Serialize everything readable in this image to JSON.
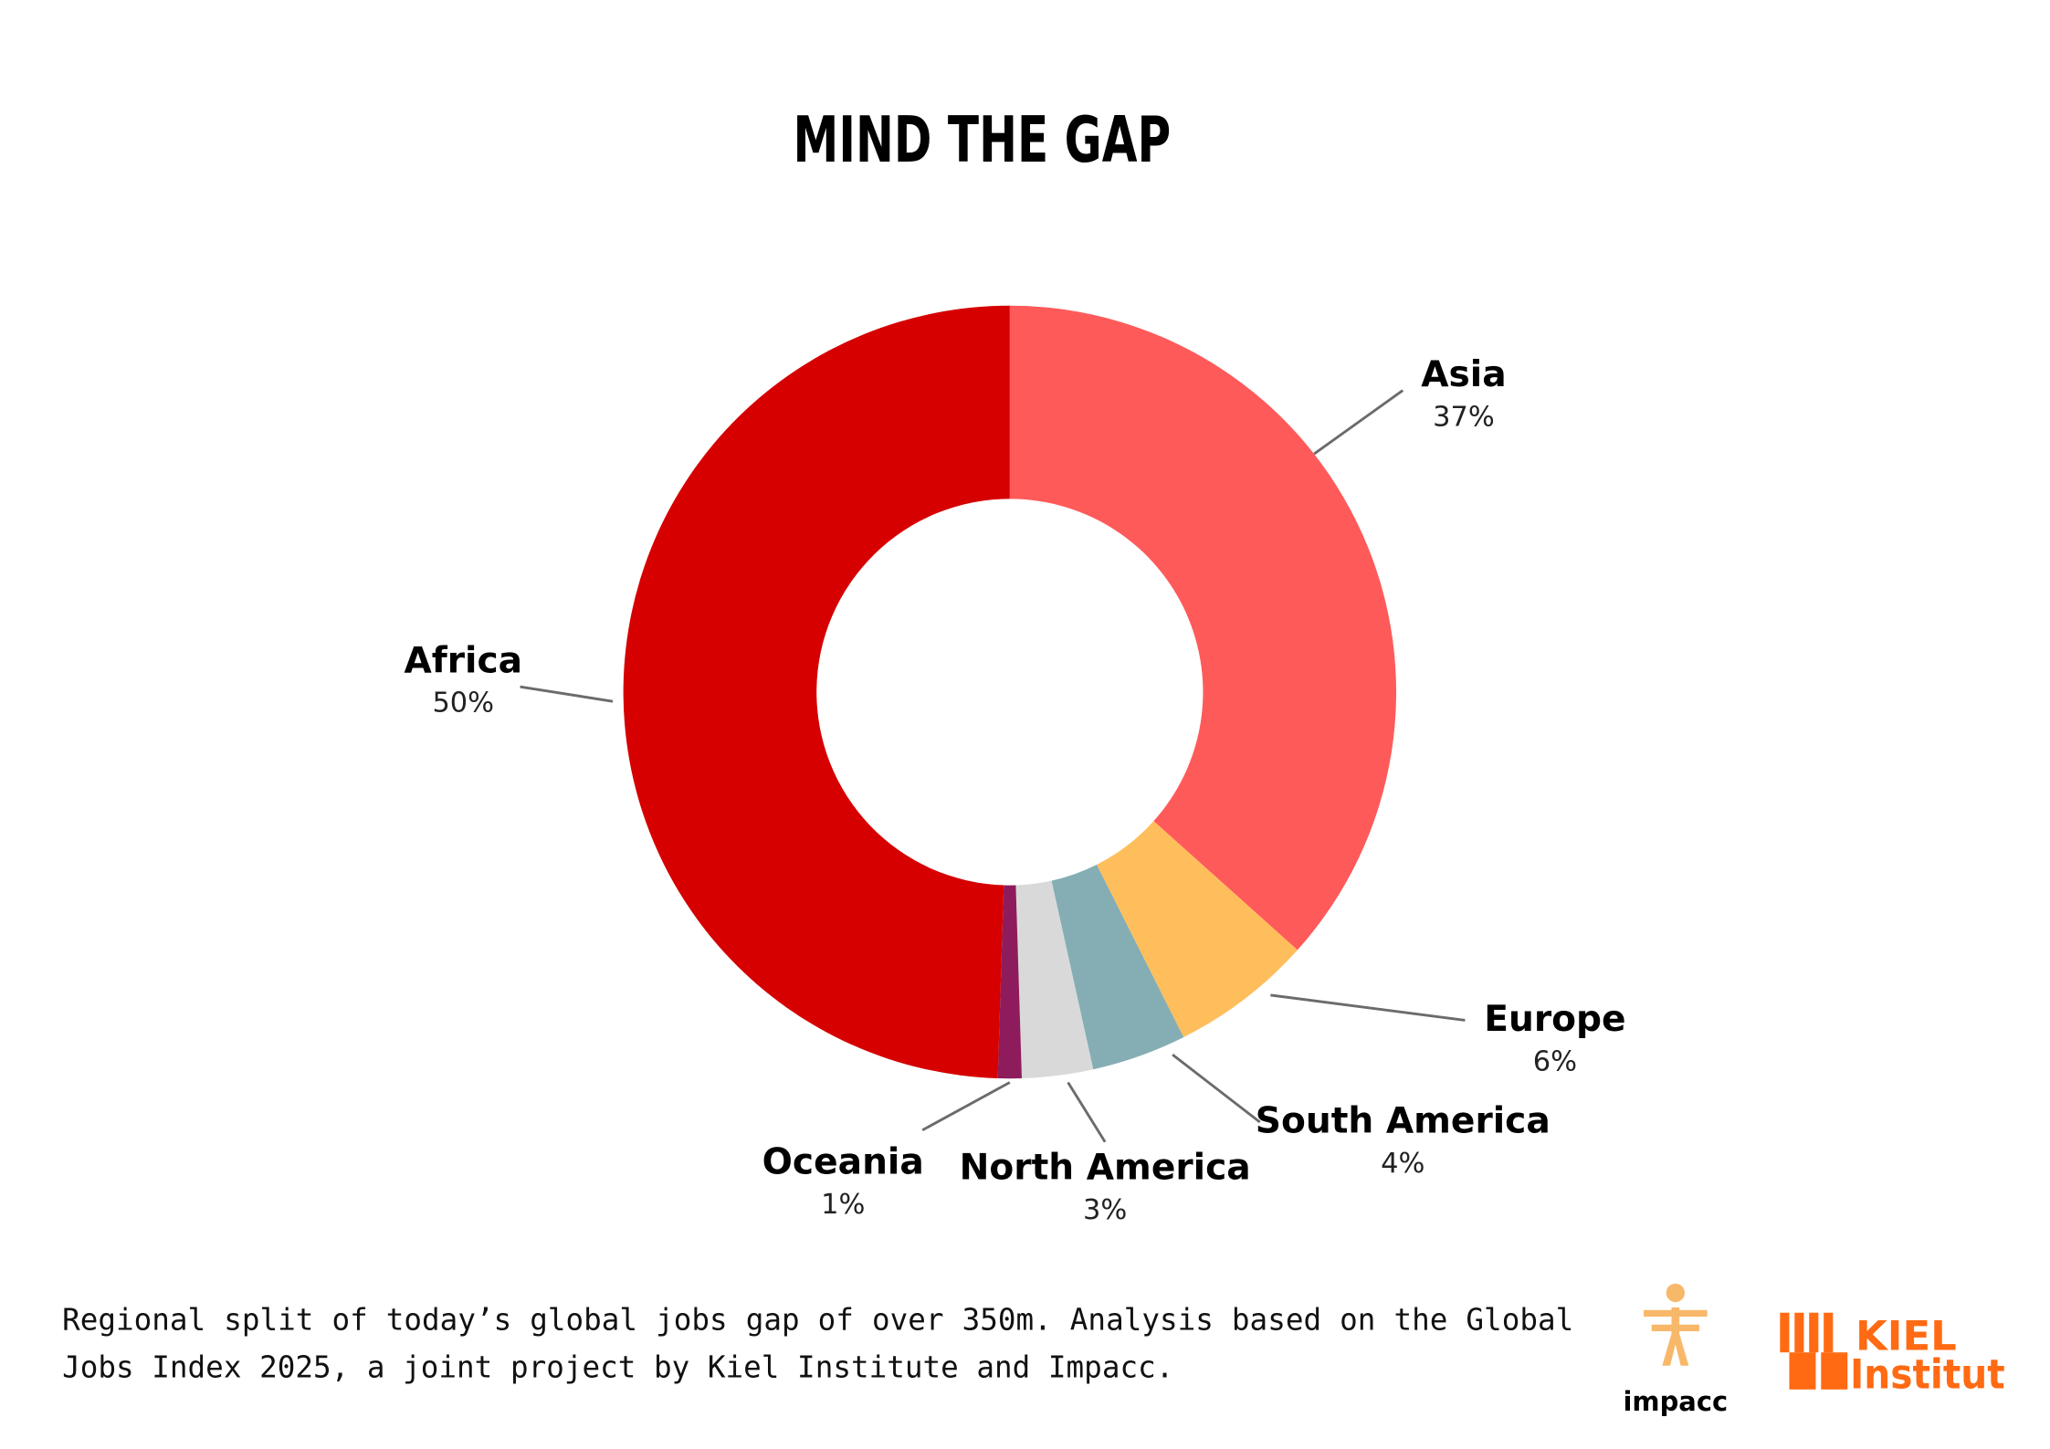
{
  "chart_data": {
    "type": "donut",
    "title": "MIND THE GAP",
    "categories": [
      "Asia",
      "Europe",
      "South America",
      "North America",
      "Oceania",
      "Africa"
    ],
    "values": [
      37,
      6,
      4,
      3,
      1,
      50
    ],
    "value_labels": [
      "37%",
      "6%",
      "4%",
      "3%",
      "1%",
      "50%"
    ],
    "colors": [
      "#ff5a5a",
      "#ffbe5c",
      "#85adb4",
      "#d9d9d9",
      "#8e1c5c",
      "#d60000"
    ]
  },
  "footer": {
    "caption": "Regional split of today’s global jobs gap of over 350m. Analysis based on the Global Jobs Index 2025, a joint project by Kiel Institute and Impacc.",
    "logos": {
      "impacc": "impacc",
      "kiel_top": "KIEL",
      "kiel_bottom": "Institut"
    }
  }
}
